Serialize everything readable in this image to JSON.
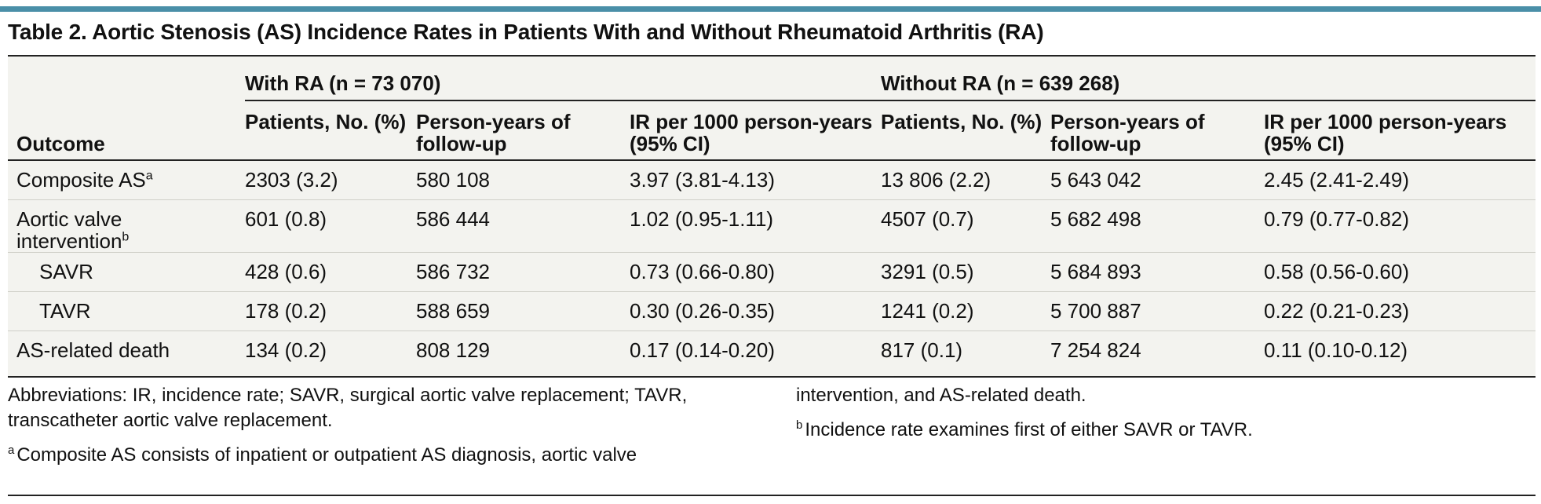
{
  "title": "Table 2. Aortic Stenosis (AS) Incidence Rates in Patients With and Without Rheumatoid Arthritis (RA)",
  "header": {
    "outcome": "Outcome",
    "with_ra": "With RA (n = 73 070)",
    "without_ra": "Without RA (n = 639 268)",
    "patients": "Patients, No. (%)",
    "person_years": "Person-years of follow-up",
    "ir": "IR per 1000 person-years (95% CI)"
  },
  "rows": [
    {
      "outcome": "Composite AS",
      "sup": "a",
      "with_patients": "2303 (3.2)",
      "with_py": "580 108",
      "with_ir": "3.97 (3.81-4.13)",
      "without_patients": "13 806 (2.2)",
      "without_py": "5 643 042",
      "without_ir": "2.45 (2.41-2.49)"
    },
    {
      "outcome": "Aortic valve intervention",
      "sup": "b",
      "with_patients": "601 (0.8)",
      "with_py": "586 444",
      "with_ir": "1.02 (0.95-1.11)",
      "without_patients": "4507 (0.7)",
      "without_py": "5 682 498",
      "without_ir": "0.79 (0.77-0.82)"
    },
    {
      "outcome": "SAVR",
      "sup": "",
      "with_patients": "428 (0.6)",
      "with_py": "586 732",
      "with_ir": "0.73 (0.66-0.80)",
      "without_patients": "3291 (0.5)",
      "without_py": "5 684 893",
      "without_ir": "0.58 (0.56-0.60)"
    },
    {
      "outcome": "TAVR",
      "sup": "",
      "with_patients": "178 (0.2)",
      "with_py": "588 659",
      "with_ir": "0.30 (0.26-0.35)",
      "without_patients": "1241 (0.2)",
      "without_py": "5 700 887",
      "without_ir": "0.22 (0.21-0.23)"
    },
    {
      "outcome": "AS-related death",
      "sup": "",
      "with_patients": "134 (0.2)",
      "with_py": "808 129",
      "with_ir": "0.17 (0.14-0.20)",
      "without_patients": "817 (0.1)",
      "without_py": "7 254 824",
      "without_ir": "0.11 (0.10-0.12)"
    }
  ],
  "notes": {
    "abbreviations": "Abbreviations: IR, incidence rate; SAVR, surgical aortic valve replacement; TAVR, transcatheter aortic valve replacement.",
    "footnote_a_mark": "a",
    "footnote_a_part1": "Composite AS consists of inpatient or outpatient AS diagnosis, aortic valve",
    "footnote_a_part2": "intervention, and AS-related death.",
    "footnote_b_mark": "b",
    "footnote_b": "Incidence rate examines first of either SAVR or TAVR."
  },
  "colors": {
    "accent_rule": "#4a8fa8",
    "table_background": "#f3f3ef"
  }
}
